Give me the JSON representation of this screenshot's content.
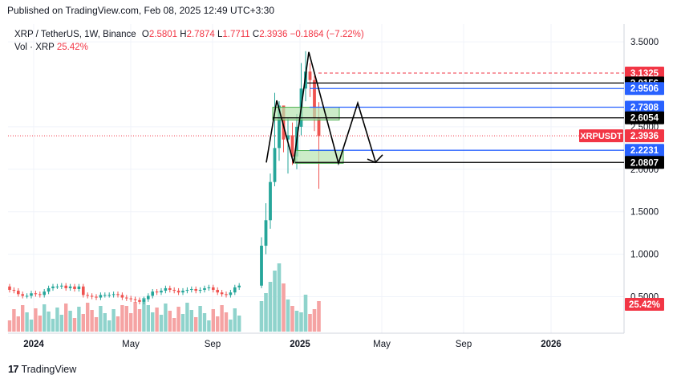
{
  "header": {
    "published": "Published on TradingView.com, Feb 08, 2025 12:49 UTC+3:30"
  },
  "legend": {
    "symbol": "XRP / TetherUS, 1W, Binance",
    "open_label": "O",
    "open": "2.5801",
    "high_label": "H",
    "high": "2.7874",
    "low_label": "L",
    "low": "1.7711",
    "close_label": "C",
    "close": "2.3936",
    "change": "−0.1864 (−7.22%)",
    "volume_label": "Vol · XRP",
    "volume_value": "25.42%"
  },
  "brand": {
    "logo": "17",
    "name": "TradingView"
  },
  "colors": {
    "up": "#26a69a",
    "down": "#ef5350",
    "vol_up": "#8fd3cc",
    "vol_down": "#f5a3a3",
    "blue_level": "#2962ff",
    "black_level": "#000000",
    "red_dashed": "#f23645",
    "zone_fill": "#b7e4b0",
    "zone_stroke": "#4caf50"
  },
  "chart_data": {
    "type": "candlestick",
    "y_axis": {
      "ticks": [
        "3.5000",
        "2.5000",
        "2.0000",
        "1.5000",
        "1.0000",
        "0.5000"
      ],
      "min": 0.5,
      "max": 3.5
    },
    "x_axis": {
      "ticks": [
        "2024",
        "May",
        "Sep",
        "2025",
        "May",
        "Sep",
        "2026"
      ]
    },
    "price_labels": [
      {
        "text": "3.1325",
        "value": 3.1325,
        "style": "red"
      },
      {
        "text": "3.0156",
        "value": 3.0156,
        "style": "black"
      },
      {
        "text": "2.9506",
        "value": 2.9506,
        "style": "blue"
      },
      {
        "text": "2.7308",
        "value": 2.7308,
        "style": "blue"
      },
      {
        "text": "2.6054",
        "value": 2.6054,
        "style": "black"
      },
      {
        "text": "2.3936",
        "value": 2.3936,
        "style": "red",
        "symbol": "XRPUSDT"
      },
      {
        "text": "2.2231",
        "value": 2.2231,
        "style": "blue"
      },
      {
        "text": "2.0807",
        "value": 2.0807,
        "style": "black"
      }
    ],
    "volume_label": "25.42%",
    "candles_2024": {
      "open": [
        0.62,
        0.58,
        0.57,
        0.53,
        0.51,
        0.51,
        0.54,
        0.53,
        0.52,
        0.56,
        0.6,
        0.62,
        0.62,
        0.63,
        0.6,
        0.62,
        0.59,
        0.62,
        0.52,
        0.51,
        0.5,
        0.49,
        0.52,
        0.52,
        0.52,
        0.53,
        0.52,
        0.49,
        0.48,
        0.47,
        0.46,
        0.44,
        0.47,
        0.51,
        0.56,
        0.55,
        0.57,
        0.6,
        0.58,
        0.57,
        0.55,
        0.57,
        0.58,
        0.59,
        0.57,
        0.58,
        0.6,
        0.61,
        0.58,
        0.55,
        0.53,
        0.52,
        0.55,
        0.61
      ],
      "close": [
        0.58,
        0.57,
        0.53,
        0.51,
        0.51,
        0.54,
        0.53,
        0.52,
        0.56,
        0.6,
        0.62,
        0.62,
        0.63,
        0.6,
        0.62,
        0.59,
        0.62,
        0.52,
        0.51,
        0.5,
        0.49,
        0.52,
        0.52,
        0.52,
        0.53,
        0.52,
        0.49,
        0.48,
        0.47,
        0.46,
        0.44,
        0.47,
        0.51,
        0.56,
        0.55,
        0.57,
        0.6,
        0.58,
        0.57,
        0.55,
        0.57,
        0.58,
        0.59,
        0.57,
        0.58,
        0.6,
        0.61,
        0.58,
        0.55,
        0.53,
        0.52,
        0.55,
        0.61,
        0.63
      ]
    },
    "candles_recent": {
      "open": [
        0.63,
        1.1,
        1.4,
        1.85,
        2.25,
        2.75,
        2.35,
        2.4,
        2.15,
        2.5,
        2.95,
        3.15,
        3.05,
        2.6
      ],
      "close": [
        1.1,
        1.4,
        1.85,
        2.25,
        2.75,
        2.35,
        2.4,
        2.15,
        2.5,
        2.95,
        3.15,
        3.05,
        2.6,
        2.39
      ],
      "high": [
        1.2,
        1.6,
        1.95,
        2.9,
        2.8,
        2.75,
        2.6,
        2.55,
        2.65,
        3.25,
        3.39,
        3.25,
        3.1,
        2.79
      ],
      "low": [
        0.6,
        1.0,
        1.3,
        1.8,
        2.1,
        2.2,
        1.95,
        2.05,
        2.0,
        2.4,
        2.8,
        2.85,
        2.45,
        1.77
      ]
    }
  }
}
